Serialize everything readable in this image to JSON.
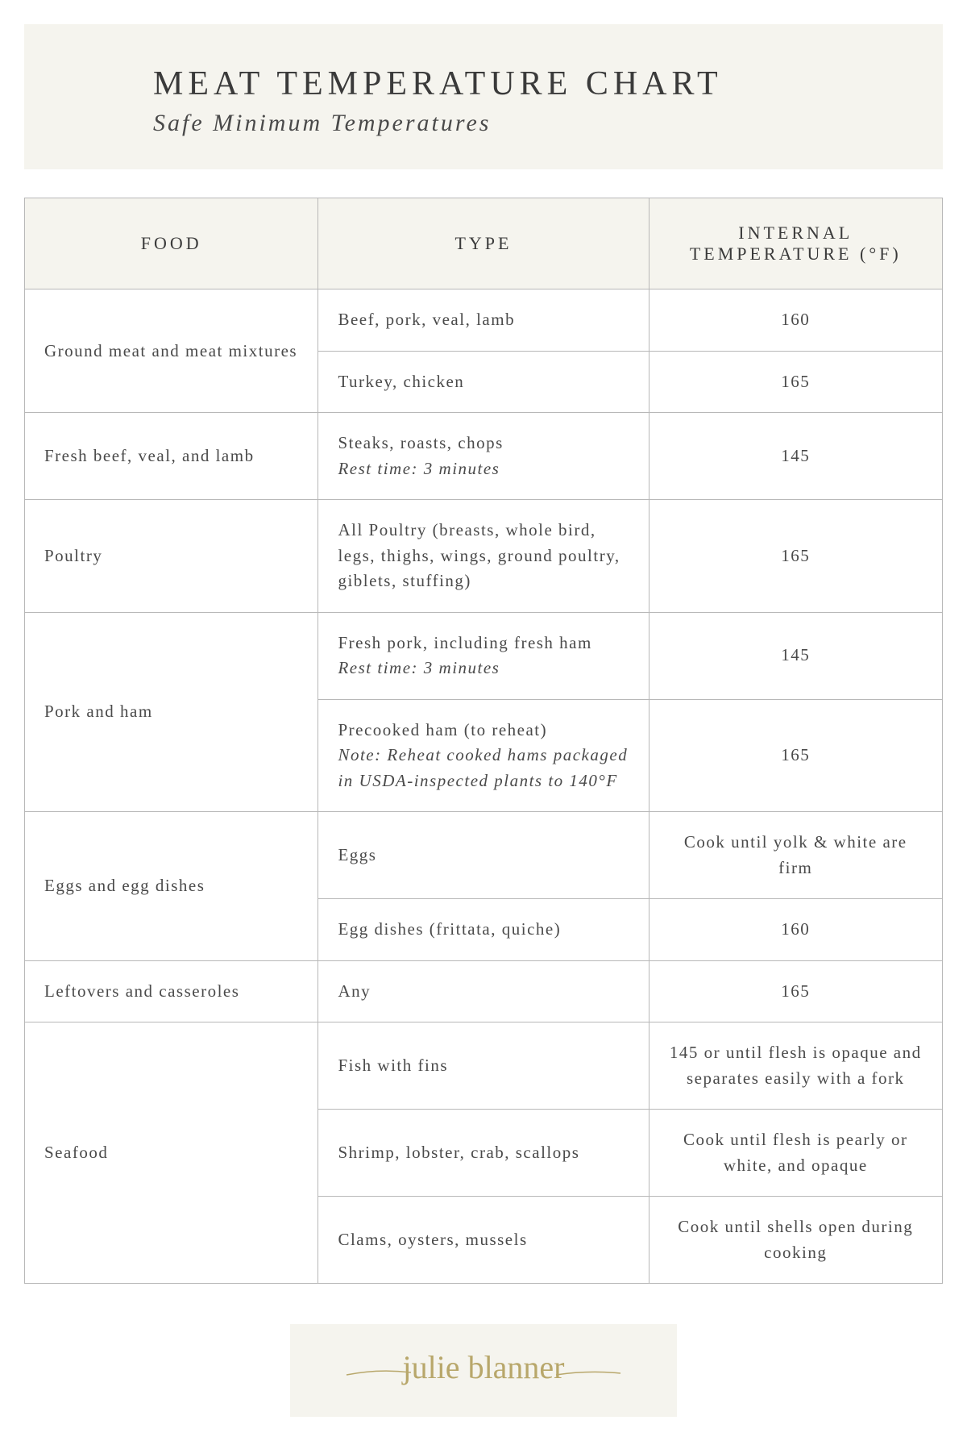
{
  "header": {
    "title": "MEAT TEMPERATURE CHART",
    "subtitle": "Safe Minimum Temperatures"
  },
  "columns": [
    "FOOD",
    "TYPE",
    "INTERNAL TEMPERATURE (°F)"
  ],
  "rows": [
    {
      "food": "Ground meat and meat mixtures",
      "type": "Beef, pork, veal, lamb",
      "note": "",
      "temp": "160",
      "rowspan": 2
    },
    {
      "food": "",
      "type": "Turkey, chicken",
      "note": "",
      "temp": "165",
      "rowspan": 0
    },
    {
      "food": "Fresh beef, veal, and lamb",
      "type": "Steaks, roasts, chops",
      "note": "Rest time: 3 minutes",
      "temp": "145",
      "rowspan": 1
    },
    {
      "food": "Poultry",
      "type": "All Poultry (breasts, whole bird, legs, thighs, wings, ground poultry, giblets, stuffing)",
      "note": "",
      "temp": "165",
      "rowspan": 1
    },
    {
      "food": "Pork and ham",
      "type": "Fresh pork, including fresh ham",
      "note": "Rest time: 3 minutes",
      "temp": "145",
      "rowspan": 2
    },
    {
      "food": "",
      "type": "Precooked ham (to reheat)",
      "note": "Note: Reheat cooked hams packaged in USDA-inspected plants to 140°F",
      "temp": "165",
      "rowspan": 0
    },
    {
      "food": "Eggs and egg dishes",
      "type": "Eggs",
      "note": "",
      "temp": "Cook until yolk & white are firm",
      "rowspan": 2
    },
    {
      "food": "",
      "type": "Egg dishes (frittata, quiche)",
      "note": "",
      "temp": "160",
      "rowspan": 0
    },
    {
      "food": "Leftovers and casseroles",
      "type": "Any",
      "note": "",
      "temp": "165",
      "rowspan": 1
    },
    {
      "food": "Seafood",
      "type": "Fish with fins",
      "note": "",
      "temp": "145 or until flesh is opaque and separates easily with a fork",
      "rowspan": 3
    },
    {
      "food": "",
      "type": "Shrimp, lobster, crab, scallops",
      "note": "",
      "temp": "Cook until flesh is pearly or white, and opaque",
      "rowspan": 0
    },
    {
      "food": "",
      "type": "Clams, oysters, mussels",
      "note": "",
      "temp": "Cook until shells open during cooking",
      "rowspan": 0
    }
  ],
  "signature": "julie blanner",
  "style": {
    "header_bg": "#f5f4ee",
    "border_color": "#b8b8b8",
    "text_color": "#4a4a4a",
    "title_color": "#3a3a3a",
    "signature_color": "#b8a76b",
    "title_fontsize": 42,
    "subtitle_fontsize": 30,
    "th_fontsize": 22,
    "td_fontsize": 21,
    "title_letter_spacing": 6,
    "th_letter_spacing": 4
  }
}
